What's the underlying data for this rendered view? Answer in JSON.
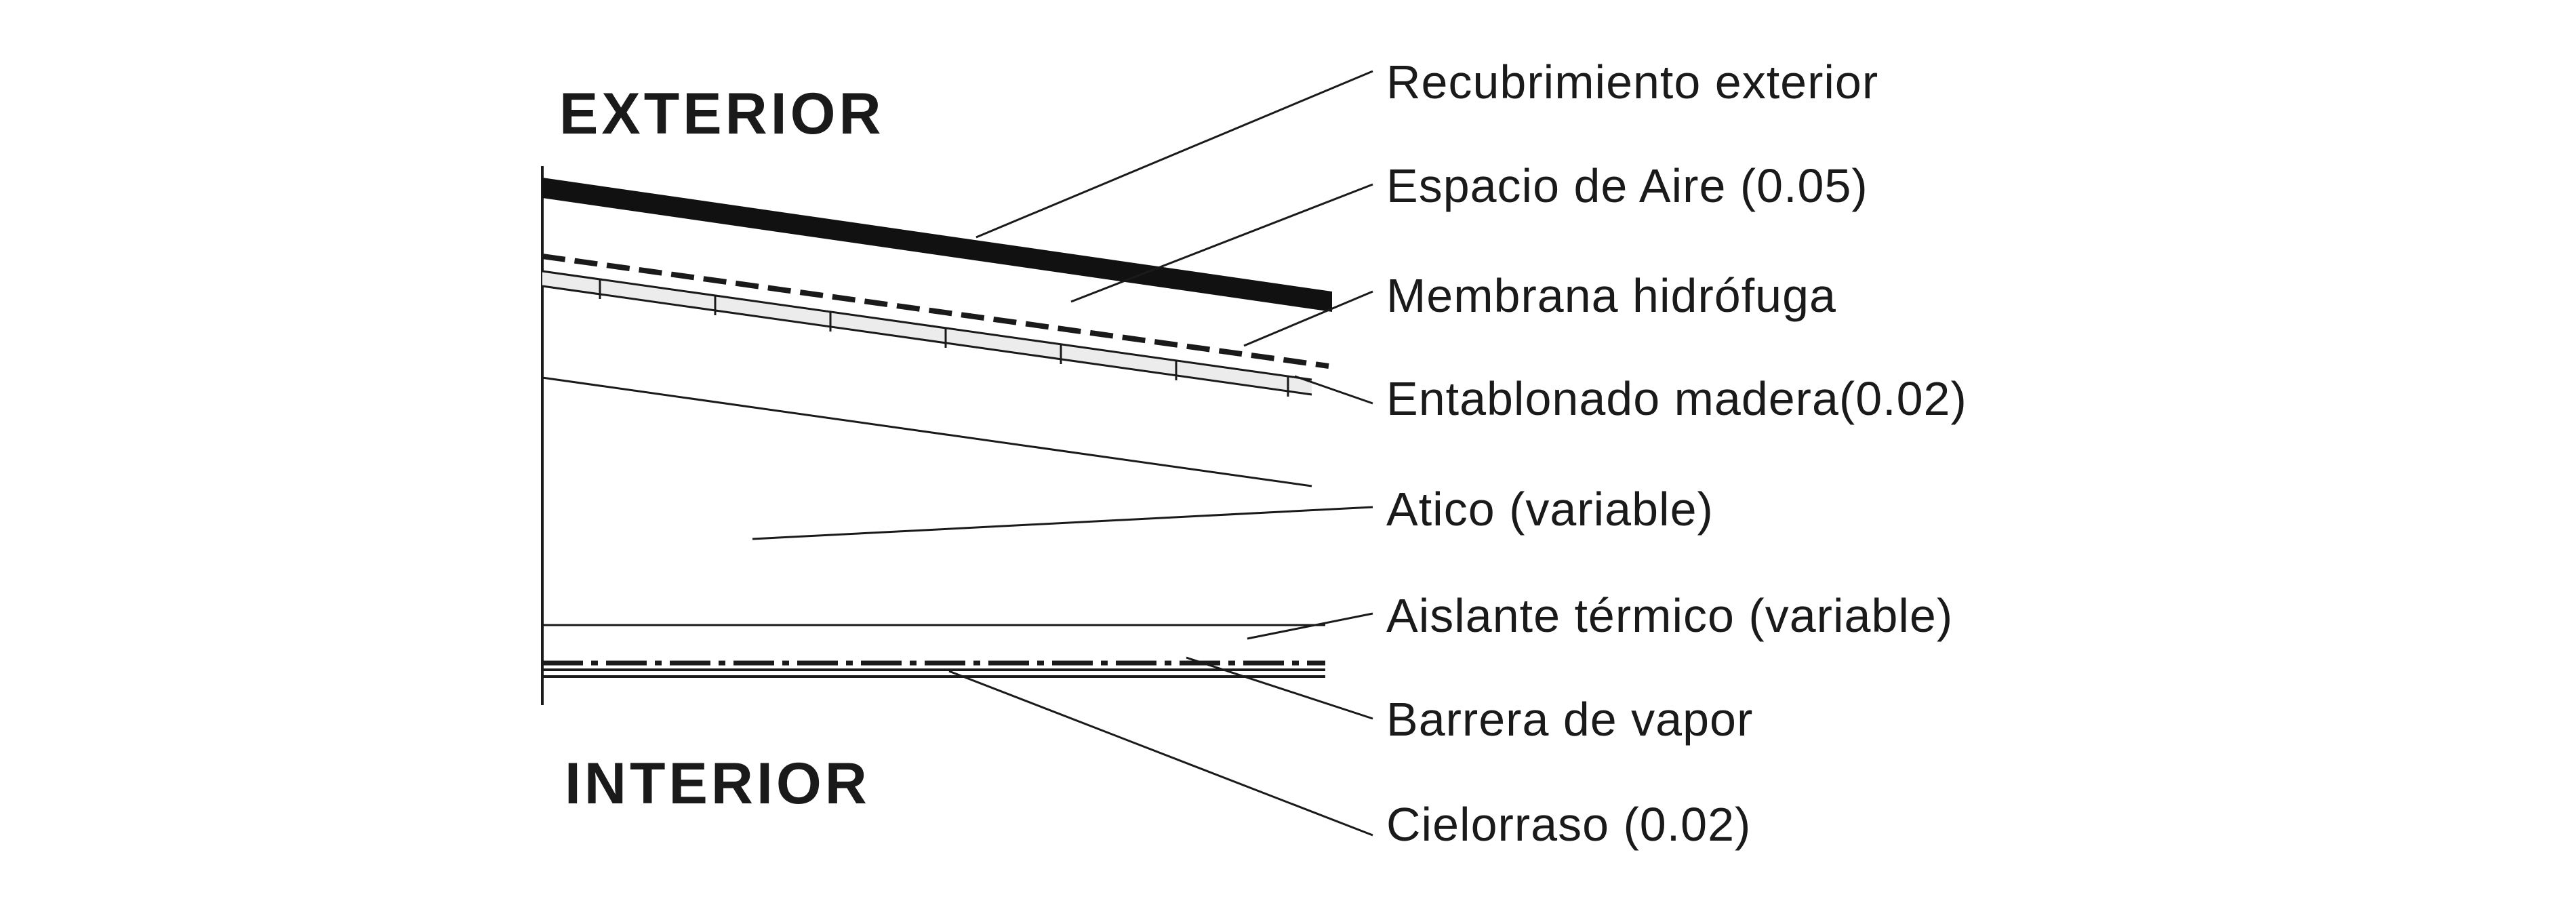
{
  "zones": {
    "exterior": "EXTERIOR",
    "interior": "INTERIOR"
  },
  "layers": [
    {
      "id": "recubrimiento",
      "label": "Recubrimiento exterior"
    },
    {
      "id": "espacio-aire",
      "label": "Espacio de Aire (0.05)"
    },
    {
      "id": "membrana",
      "label": "Membrana hidrófuga"
    },
    {
      "id": "entablonado",
      "label": "Entablonado madera(0.02)"
    },
    {
      "id": "atico",
      "label": "Atico  (variable)"
    },
    {
      "id": "aislante",
      "label": "Aislante térmico (variable)"
    },
    {
      "id": "barrera",
      "label": "Barrera de vapor"
    },
    {
      "id": "cielorraso",
      "label": "Cielorraso (0.02)"
    }
  ]
}
